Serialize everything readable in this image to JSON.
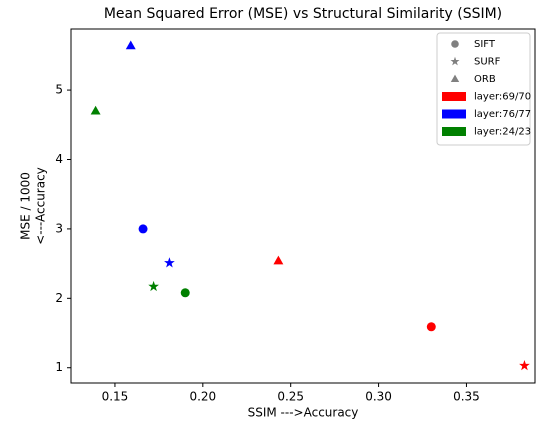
{
  "chart_data": {
    "type": "scatter",
    "title": "Mean Squared Error (MSE) vs Structural Similarity (SSIM)",
    "xlabel": "SSIM --->Accuracy",
    "ylabel": [
      "MSE / 1000",
      "<---Accuracy"
    ],
    "xlim": [
      0.125,
      0.389
    ],
    "ylim": [
      0.78,
      5.88
    ],
    "xticks": [
      0.15,
      {
        "value": 0.2,
        "label": "0.20"
      },
      0.25,
      {
        "value": 0.3,
        "label": "0.30"
      },
      0.35
    ],
    "yticks": [
      1,
      2,
      3,
      4,
      5
    ],
    "legend": "upper right",
    "marker_color": "#808080",
    "markers": [
      {
        "name": "SIFT",
        "marker": "circle"
      },
      {
        "name": "SURF",
        "marker": "star"
      },
      {
        "name": "ORB",
        "marker": "triangle"
      }
    ],
    "series": [
      {
        "name": "layer:69/70",
        "color": "#ff0000",
        "x": [
          0.33,
          0.383,
          0.243
        ],
        "values": [
          1.59,
          1.03,
          2.54
        ]
      },
      {
        "name": "layer:76/77",
        "color": "#0000ff",
        "x": [
          0.166,
          0.181,
          0.159
        ],
        "values": [
          3.0,
          2.51,
          5.64
        ]
      },
      {
        "name": "layer:24/23",
        "color": "#008000",
        "x": [
          0.19,
          0.172,
          0.139
        ],
        "values": [
          2.08,
          2.17,
          4.7
        ]
      }
    ]
  }
}
